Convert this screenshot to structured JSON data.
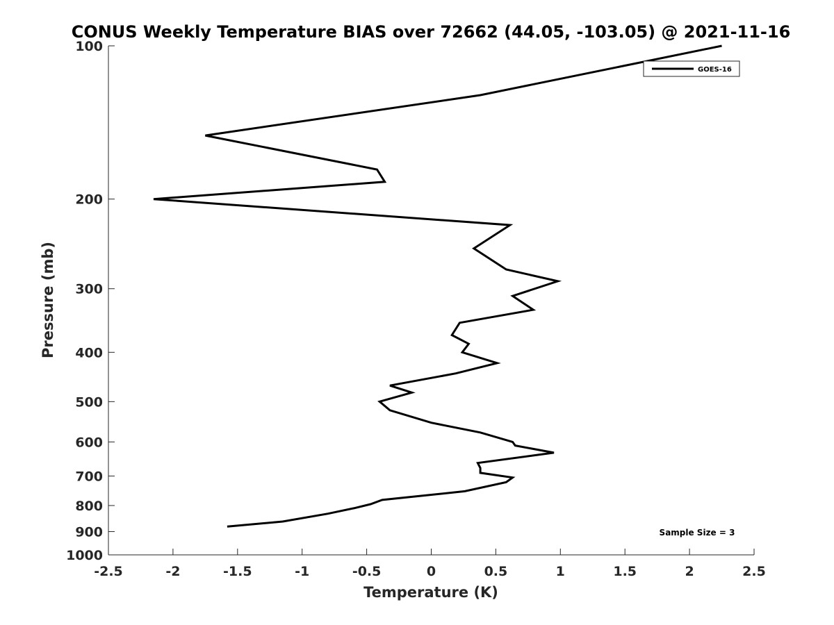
{
  "chart_data": {
    "type": "line",
    "title": "CONUS Weekly Temperature BIAS over 72662 (44.05, -103.05) @ 2021-11-16",
    "xlabel": "Temperature (K)",
    "ylabel": "Pressure (mb)",
    "xlim": [
      -2.5,
      2.5
    ],
    "ylim": [
      100,
      1000
    ],
    "y_scale": "log",
    "y_reversed": true,
    "x_ticks": [
      "-2.5",
      "-2",
      "-1.5",
      "-1",
      "-0.5",
      "0",
      "0.5",
      "1",
      "1.5",
      "2",
      "2.5"
    ],
    "y_ticks": [
      "100",
      "200",
      "300",
      "400",
      "500",
      "600",
      "700",
      "800",
      "900",
      "1000"
    ],
    "grid": false,
    "legend_position": "top-right",
    "annotation": "Sample Size = 3",
    "series": [
      {
        "name": "GOES-16",
        "color": "#000000",
        "x": [
          2.25,
          0.38,
          -1.75,
          -0.42,
          -0.36,
          -2.15,
          0.61,
          0.33,
          0.58,
          0.98,
          0.63,
          0.79,
          0.22,
          0.16,
          0.29,
          0.24,
          0.51,
          0.19,
          -0.32,
          -0.15,
          -0.4,
          -0.32,
          0.0,
          0.38,
          0.63,
          0.65,
          0.95,
          0.36,
          0.38,
          0.38,
          0.63,
          0.58,
          0.26,
          -0.38,
          -0.47,
          -0.6,
          -0.8,
          -1.15,
          -1.58
        ],
        "y": [
          100,
          125,
          150,
          175,
          185,
          200,
          225,
          250,
          275,
          290,
          310,
          330,
          350,
          370,
          385,
          400,
          420,
          440,
          465,
          480,
          500,
          520,
          550,
          575,
          600,
          610,
          630,
          660,
          675,
          690,
          705,
          720,
          750,
          780,
          795,
          810,
          830,
          860,
          880
        ]
      }
    ]
  }
}
